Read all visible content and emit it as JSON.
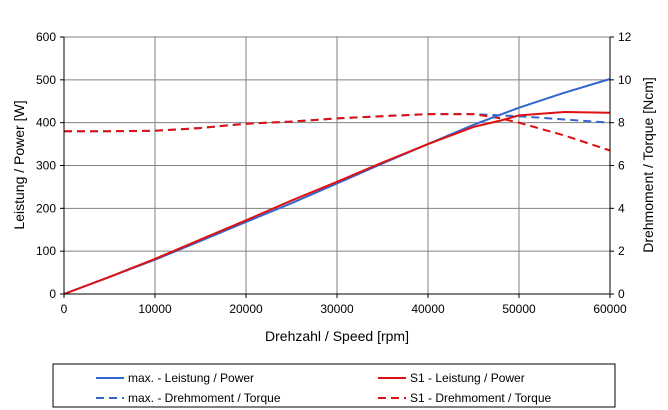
{
  "chart_data": {
    "type": "line",
    "title": "",
    "xlabel": "Drehzahl / Speed [rpm]",
    "ylabel_left": "Leistung / Power [W]",
    "ylabel_right": "Drehmoment / Torque [Ncm]",
    "xlim": [
      0,
      60000
    ],
    "ylim_left": [
      0,
      600
    ],
    "ylim_right": [
      0,
      12
    ],
    "x_ticks": [
      0,
      10000,
      20000,
      30000,
      40000,
      50000,
      60000
    ],
    "y_ticks_left": [
      0,
      100,
      200,
      300,
      400,
      500,
      600
    ],
    "y_ticks_right": [
      0,
      2,
      4,
      6,
      8,
      10,
      12
    ],
    "grid": true,
    "legend_position": "bottom",
    "series": [
      {
        "name": "max. - Leistung / Power",
        "axis": "left",
        "color": "#3366cc",
        "dash": "solid",
        "x": [
          0,
          5000,
          10000,
          15000,
          20000,
          25000,
          30000,
          35000,
          40000,
          45000,
          50000,
          55000,
          60000
        ],
        "y": [
          0,
          40,
          80,
          124,
          168,
          212,
          258,
          305,
          350,
          395,
          435,
          470,
          502
        ]
      },
      {
        "name": "max. - Drehmoment / Torque",
        "axis": "right",
        "color": "#3366cc",
        "dash": "dashed",
        "x": [
          0,
          5000,
          10000,
          15000,
          20000,
          25000,
          30000,
          35000,
          40000,
          45000,
          50000,
          55000,
          60000
        ],
        "y": [
          7.6,
          7.6,
          7.62,
          7.75,
          7.95,
          8.05,
          8.2,
          8.3,
          8.4,
          8.4,
          8.3,
          8.15,
          8.0
        ]
      },
      {
        "name": "S1 - Leistung / Power",
        "axis": "left",
        "color": "#e01010",
        "dash": "solid",
        "x": [
          0,
          5000,
          10000,
          15000,
          20000,
          25000,
          30000,
          35000,
          40000,
          45000,
          48000,
          50000,
          55000,
          60000
        ],
        "y": [
          0,
          40,
          82,
          127,
          172,
          218,
          262,
          307,
          350,
          390,
          405,
          417,
          425,
          423
        ]
      },
      {
        "name": "S1 - Drehmoment / Torque",
        "axis": "right",
        "color": "#e01010",
        "dash": "dashed",
        "x": [
          0,
          5000,
          10000,
          15000,
          20000,
          25000,
          30000,
          35000,
          40000,
          45000,
          48000,
          50000,
          55000,
          60000
        ],
        "y": [
          7.6,
          7.6,
          7.62,
          7.75,
          7.95,
          8.05,
          8.2,
          8.3,
          8.4,
          8.4,
          8.2,
          8.0,
          7.4,
          6.7
        ]
      }
    ]
  }
}
